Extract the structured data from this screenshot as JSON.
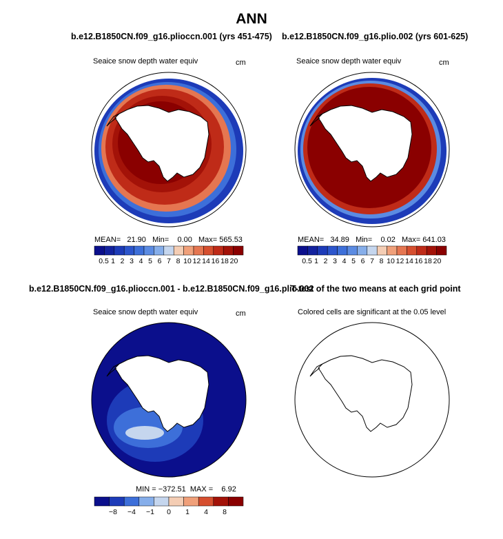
{
  "page_title": "ANN",
  "panels": [
    {
      "title": "b.e12.B1850CN.f09_g16.plioccn.001 (yrs 451-475)",
      "subtitle": "Seaice snow depth water equiv",
      "units": "cm",
      "stats": "MEAN=   21.90   Min=    0.00   Max= 565.53"
    },
    {
      "title": "b.e12.B1850CN.f09_g16.plio.002 (yrs 601-625)",
      "subtitle": "Seaice snow depth water equiv",
      "units": "cm",
      "stats": "MEAN=   34.89   Min=    0.02   Max= 641.03"
    },
    {
      "title": "b.e12.B1850CN.f09_g16.plioccn.001 - b.e12.B1850CN.f09_g16.plio.002",
      "subtitle": "Seaice snow depth water equiv",
      "units": "cm",
      "stats": "MIN = −372.51  MAX =    6.92"
    },
    {
      "title": "T-test of the two means at each grid point",
      "subtitle": "Colored cells are significant at the 0.05 level",
      "units": "",
      "stats": ""
    }
  ],
  "chart_data": [
    {
      "type": "heatmap",
      "title": "b.e12.B1850CN.f09_g16.plioccn.001 (yrs 451-475)",
      "variable": "Seaice snow depth water equiv",
      "units": "cm",
      "projection": "south polar stereographic",
      "mean": 21.9,
      "min": 0.0,
      "max": 565.53,
      "colorbar_levels": [
        "0.5",
        "1",
        "2",
        "3",
        "4",
        "5",
        "6",
        "7",
        "8",
        "10",
        "12",
        "14",
        "16",
        "18",
        "20"
      ]
    },
    {
      "type": "heatmap",
      "title": "b.e12.B1850CN.f09_g16.plio.002 (yrs 601-625)",
      "variable": "Seaice snow depth water equiv",
      "units": "cm",
      "projection": "south polar stereographic",
      "mean": 34.89,
      "min": 0.02,
      "max": 641.03,
      "colorbar_levels": [
        "0.5",
        "1",
        "2",
        "3",
        "4",
        "5",
        "6",
        "7",
        "8",
        "10",
        "12",
        "14",
        "16",
        "18",
        "20"
      ]
    },
    {
      "type": "heatmap",
      "title": "b.e12.B1850CN.f09_g16.plioccn.001 - b.e12.B1850CN.f09_g16.plio.002",
      "variable": "Seaice snow depth water equiv",
      "units": "cm",
      "projection": "south polar stereographic",
      "min": -372.51,
      "max": 6.92,
      "colorbar_levels": [
        "−8",
        "−4",
        "−1",
        "0",
        "1",
        "4",
        "8"
      ]
    },
    {
      "type": "heatmap",
      "title": "T-test of the two means at each grid point",
      "note": "Colored cells are significant at the 0.05 level",
      "projection": "south polar stereographic"
    }
  ],
  "colors": {
    "abs_scale": [
      "#0b0f8c",
      "#13229e",
      "#1d3bb8",
      "#2c55cc",
      "#3d6fd9",
      "#5b8be2",
      "#86aeea",
      "#c5d6ee",
      "#f4cdb4",
      "#f0a07a",
      "#e57651",
      "#d64f2f",
      "#bf2b18",
      "#a31208",
      "#8a0000"
    ],
    "diff_scale": [
      "#0b0f8c",
      "#1d3bb8",
      "#3d6fd9",
      "#86aeea",
      "#c5d6ee",
      "#f4cdb4",
      "#f0a07a",
      "#d64f2f",
      "#a31208",
      "#8a0000"
    ],
    "land": "#ffffff",
    "coast": "#000000"
  }
}
